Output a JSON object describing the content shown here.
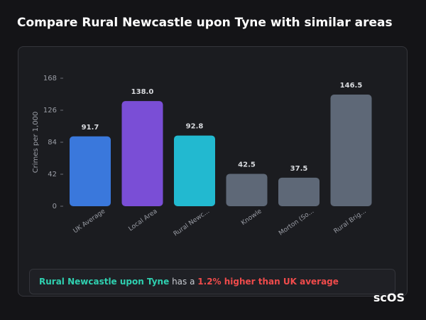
{
  "title": "Compare Rural Newcastle upon Tyne with similar areas",
  "chart_data": {
    "type": "bar",
    "y_label": "Crimes per 1,000",
    "categories": [
      "UK Average",
      "Local Area",
      "Rural Newc...",
      "Knowle",
      "Morton (So...",
      "Rural Brig..."
    ],
    "values": [
      91.7,
      138,
      92.8,
      42.5,
      37.5,
      146.5
    ],
    "value_labels": [
      "91.7",
      "138.0",
      "92.8",
      "42.5",
      "37.5",
      "146.5"
    ],
    "colors": [
      "#3a78dc",
      "#7a4ed6",
      "#22b9d0",
      "#5e6877",
      "#5e6877",
      "#5e6877"
    ],
    "ylim": [
      0,
      168
    ],
    "yticks": [
      0,
      42,
      84,
      126,
      168
    ]
  },
  "summary": {
    "subject": "Rural Newcastle upon Tyne",
    "middle": "has a",
    "highlight": "1.2% higher than UK average"
  },
  "logo": "scOS"
}
